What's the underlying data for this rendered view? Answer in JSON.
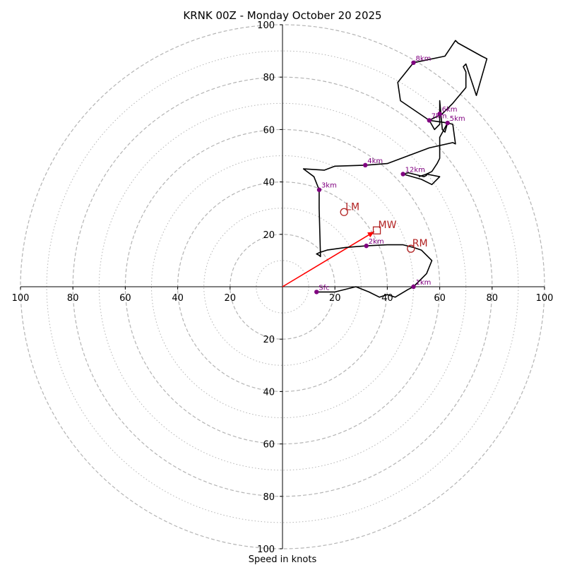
{
  "chart_data": {
    "type": "hodograph",
    "title": "KRNK 00Z - Monday October 20 2025",
    "xlabel": "Speed in knots",
    "range": [
      -100,
      100
    ],
    "x_tick_labels": [
      "100",
      "80",
      "60",
      "40",
      "20",
      "20",
      "40",
      "60",
      "80",
      "100"
    ],
    "x_tick_values": [
      -100,
      -80,
      -60,
      -40,
      -20,
      20,
      40,
      60,
      80,
      100
    ],
    "y_tick_labels_upper": [
      "20",
      "40",
      "60",
      "80",
      "100"
    ],
    "y_tick_values_upper": [
      20,
      40,
      60,
      80,
      100
    ],
    "y_tick_labels_lower": [
      "20",
      "40",
      "60",
      "80",
      "100"
    ],
    "y_tick_values_lower": [
      -20,
      -40,
      -60,
      -80,
      -100
    ],
    "rings_major": [
      20,
      40,
      60,
      80,
      100
    ],
    "rings_minor": [
      10,
      30,
      50,
      70,
      90
    ],
    "trace": [
      [
        13.0,
        -2.0
      ],
      [
        20.0,
        -2.0
      ],
      [
        28.0,
        0.0
      ],
      [
        33.0,
        -2.0
      ],
      [
        37.0,
        -4.0
      ],
      [
        40.0,
        -3.0
      ],
      [
        43.0,
        -4.0
      ],
      [
        48.0,
        -1.0
      ],
      [
        50.0,
        0.0
      ],
      [
        55.0,
        5.0
      ],
      [
        57.0,
        10.0
      ],
      [
        53.0,
        14.0
      ],
      [
        50.0,
        15.0
      ],
      [
        46.0,
        16.0
      ],
      [
        40.0,
        16.0
      ],
      [
        32.0,
        15.6
      ],
      [
        24.0,
        15.0
      ],
      [
        17.0,
        14.0
      ],
      [
        14.0,
        13.0
      ],
      [
        13.0,
        12.5
      ],
      [
        14.0,
        12.0
      ],
      [
        14.5,
        11.5
      ],
      [
        14.0,
        30.0
      ],
      [
        14.0,
        37.0
      ],
      [
        12.0,
        42.0
      ],
      [
        8.0,
        45.0
      ],
      [
        16.0,
        44.5
      ],
      [
        20.0,
        46.0
      ],
      [
        31.6,
        46.4
      ],
      [
        40.0,
        47.0
      ],
      [
        48.0,
        50.0
      ],
      [
        56.0,
        53.0
      ],
      [
        65.0,
        55.0
      ],
      [
        66.0,
        54.5
      ],
      [
        65.0,
        62.0
      ],
      [
        63.0,
        62.5
      ],
      [
        62.0,
        59.0
      ],
      [
        61.0,
        60.0
      ],
      [
        60.0,
        71.0
      ],
      [
        60.0,
        62.0
      ],
      [
        58.0,
        60.0
      ],
      [
        56.0,
        63.5
      ],
      [
        61.0,
        66.0
      ],
      [
        63.0,
        68.0
      ],
      [
        65.0,
        70.0
      ],
      [
        70.0,
        76.0
      ],
      [
        70.0,
        82.0
      ],
      [
        69.0,
        84.0
      ],
      [
        70.0,
        85.0
      ],
      [
        74.0,
        73.0
      ],
      [
        78.0,
        87.0
      ],
      [
        76.0,
        88.0
      ],
      [
        67.0,
        93.0
      ],
      [
        66.0,
        94.0
      ],
      [
        62.0,
        88.0
      ],
      [
        50.0,
        85.5
      ],
      [
        44.0,
        78.0
      ],
      [
        45.0,
        71.0
      ],
      [
        56.0,
        63.5
      ],
      [
        63.0,
        62.5
      ],
      [
        60.0,
        57.0
      ],
      [
        60.0,
        49.0
      ],
      [
        59.0,
        47.0
      ],
      [
        57.0,
        44.0
      ],
      [
        55.0,
        43.0
      ],
      [
        55.0,
        42.5
      ],
      [
        54.0,
        42.0
      ],
      [
        48.0,
        43.5
      ],
      [
        46.0,
        43.0
      ],
      [
        53.0,
        41.0
      ],
      [
        57.0,
        39.0
      ],
      [
        59.0,
        41.0
      ],
      [
        60.0,
        42.0
      ],
      [
        55.0,
        43.0
      ],
      [
        52.0,
        42.0
      ]
    ],
    "heights": [
      {
        "label": "Sfc",
        "u": 13.0,
        "v": -2.0
      },
      {
        "label": "1km",
        "u": 50.0,
        "v": 0.0
      },
      {
        "label": "2km",
        "u": 32.0,
        "v": 15.6
      },
      {
        "label": "3km",
        "u": 14.0,
        "v": 37.0
      },
      {
        "label": "4km",
        "u": 31.6,
        "v": 46.4
      },
      {
        "label": "5km",
        "u": 63.0,
        "v": 62.5
      },
      {
        "label": "6km",
        "u": 60.0,
        "v": 66.0
      },
      {
        "label": "7km",
        "u": 56.0,
        "v": 63.5
      },
      {
        "label": "8km",
        "u": 50.0,
        "v": 85.5
      },
      {
        "label": "12km",
        "u": 46.0,
        "v": 43.0
      }
    ],
    "motions": {
      "LM": {
        "label": "LM",
        "u": 23.5,
        "v": 28.5,
        "marker": "circle"
      },
      "MW": {
        "label": "MW",
        "u": 36.0,
        "v": 21.5,
        "marker": "square"
      },
      "RM": {
        "label": "RM",
        "u": 49.0,
        "v": 14.5,
        "marker": "circle"
      }
    },
    "shear_vector": {
      "u": 35.0,
      "v": 21.0
    },
    "colors": {
      "trace": "#000000",
      "height_points": "#800080",
      "motions": "#b22222",
      "shear_vector": "#ff0000",
      "rings": "#b4b4b4"
    }
  }
}
